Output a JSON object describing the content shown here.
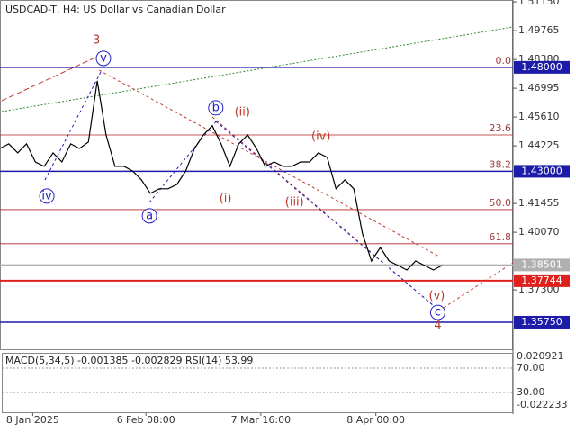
{
  "chart_data": {
    "type": "line",
    "title": "USDCAD-T, H4:  US Dollar vs Canadian Dollar",
    "xlim": [
      0,
      58
    ],
    "ylim": [
      1.3445,
      1.5124
    ],
    "xticks": [
      {
        "value": 3.7,
        "label": "8 Jan 2025"
      },
      {
        "value": 16.5,
        "label": "6 Feb 08:00"
      },
      {
        "value": 29.5,
        "label": "7 Mar 16:00"
      },
      {
        "value": 42.5,
        "label": "8 Apr 00:00"
      }
    ],
    "yticks": [
      {
        "value": 1.5115,
        "label": "1.51150"
      },
      1.49765,
      {
        "value": 1.4838,
        "label": "1.48380"
      },
      1.46995,
      {
        "value": 1.4561,
        "label": "1.45610"
      },
      1.44225,
      {
        "value": 1.41455,
        "label": "1.41455"
      },
      {
        "value": 1.4007,
        "label": "1.40070"
      },
      {
        "value": 1.373,
        "label": "1.37300"
      }
    ],
    "series": [
      {
        "name": "USDCAD-T",
        "color": "#000000",
        "values": [
          1.441,
          1.4432,
          1.4389,
          1.4432,
          1.4345,
          1.4324,
          1.4389,
          1.4345,
          1.4432,
          1.441,
          1.4441,
          1.4735,
          1.4475,
          1.4324,
          1.4324,
          1.4302,
          1.4259,
          1.4194,
          1.4216,
          1.4216,
          1.4237,
          1.4302,
          1.441,
          1.4475,
          1.4519,
          1.4432,
          1.4324,
          1.4432,
          1.4475,
          1.441,
          1.4324,
          1.4345,
          1.4324,
          1.4324,
          1.4345,
          1.4345,
          1.4389,
          1.4367,
          1.4216,
          1.4259,
          1.4216,
          1.3999,
          1.3869,
          1.3934,
          1.3869,
          1.3848,
          1.3826,
          1.3869,
          1.3848,
          1.3826,
          1.3848
        ]
      }
    ],
    "fib": [
      {
        "label": "0.0",
        "value": 1.48
      },
      {
        "label": "23.6",
        "value": 1.4475
      },
      {
        "label": "38.2",
        "value": 1.43
      },
      {
        "label": "50.0",
        "value": 1.4116
      },
      {
        "label": "61.8",
        "value": 1.3952
      }
    ],
    "levels": [
      {
        "value": 1.48,
        "label": "1.48000",
        "color": "#1c1ca8"
      },
      {
        "value": 1.43,
        "label": "1.43000",
        "color": "#1c1ca8"
      },
      {
        "value": 1.38501,
        "label": "1.38501",
        "color": "#b0b0b0"
      },
      {
        "value": 1.37744,
        "label": "1.37744",
        "color": "#e0201c"
      },
      {
        "value": 1.3575,
        "label": "1.35750",
        "color": "#1c1ca8"
      }
    ],
    "waves": [
      {
        "label": "3",
        "x": 10.9,
        "y": 1.493,
        "circled": false,
        "color": "#b03a2e"
      },
      {
        "label": "v",
        "x": 11.7,
        "y": 1.4843,
        "circled": true,
        "color": "#2020c0"
      },
      {
        "label": "iv",
        "x": 5.3,
        "y": 1.4181,
        "circled": true,
        "color": "#2020c0"
      },
      {
        "label": "a",
        "x": 16.9,
        "y": 1.4086,
        "circled": true,
        "color": "#2020c0"
      },
      {
        "label": "b",
        "x": 24.4,
        "y": 1.4605,
        "circled": true,
        "color": "#2020c0"
      },
      {
        "label": "(ii)",
        "x": 27.4,
        "y": 1.4584,
        "circled": false,
        "color": "#c0392b"
      },
      {
        "label": "(i)",
        "x": 25.5,
        "y": 1.4168,
        "circled": false,
        "color": "#c0392b"
      },
      {
        "label": "(iii)",
        "x": 33.3,
        "y": 1.4151,
        "circled": false,
        "color": "#c0392b"
      },
      {
        "label": "(iv)",
        "x": 36.3,
        "y": 1.4467,
        "circled": false,
        "color": "#c0392b"
      },
      {
        "label": "(v)",
        "x": 49.4,
        "y": 1.37,
        "circled": false,
        "color": "#c0392b"
      },
      {
        "label": "c",
        "x": 49.5,
        "y": 1.3622,
        "circled": true,
        "color": "#2020c0"
      },
      {
        "label": "4",
        "x": 49.5,
        "y": 1.3558,
        "circled": false,
        "color": "#b03a2e"
      }
    ],
    "indicator": {
      "title": "MACD(5,34,5) -0.001385 -0.002829 RSI(14) 53.99",
      "labels": [
        "0.020921",
        "70.00",
        "30.00",
        "-0.022233"
      ]
    }
  }
}
